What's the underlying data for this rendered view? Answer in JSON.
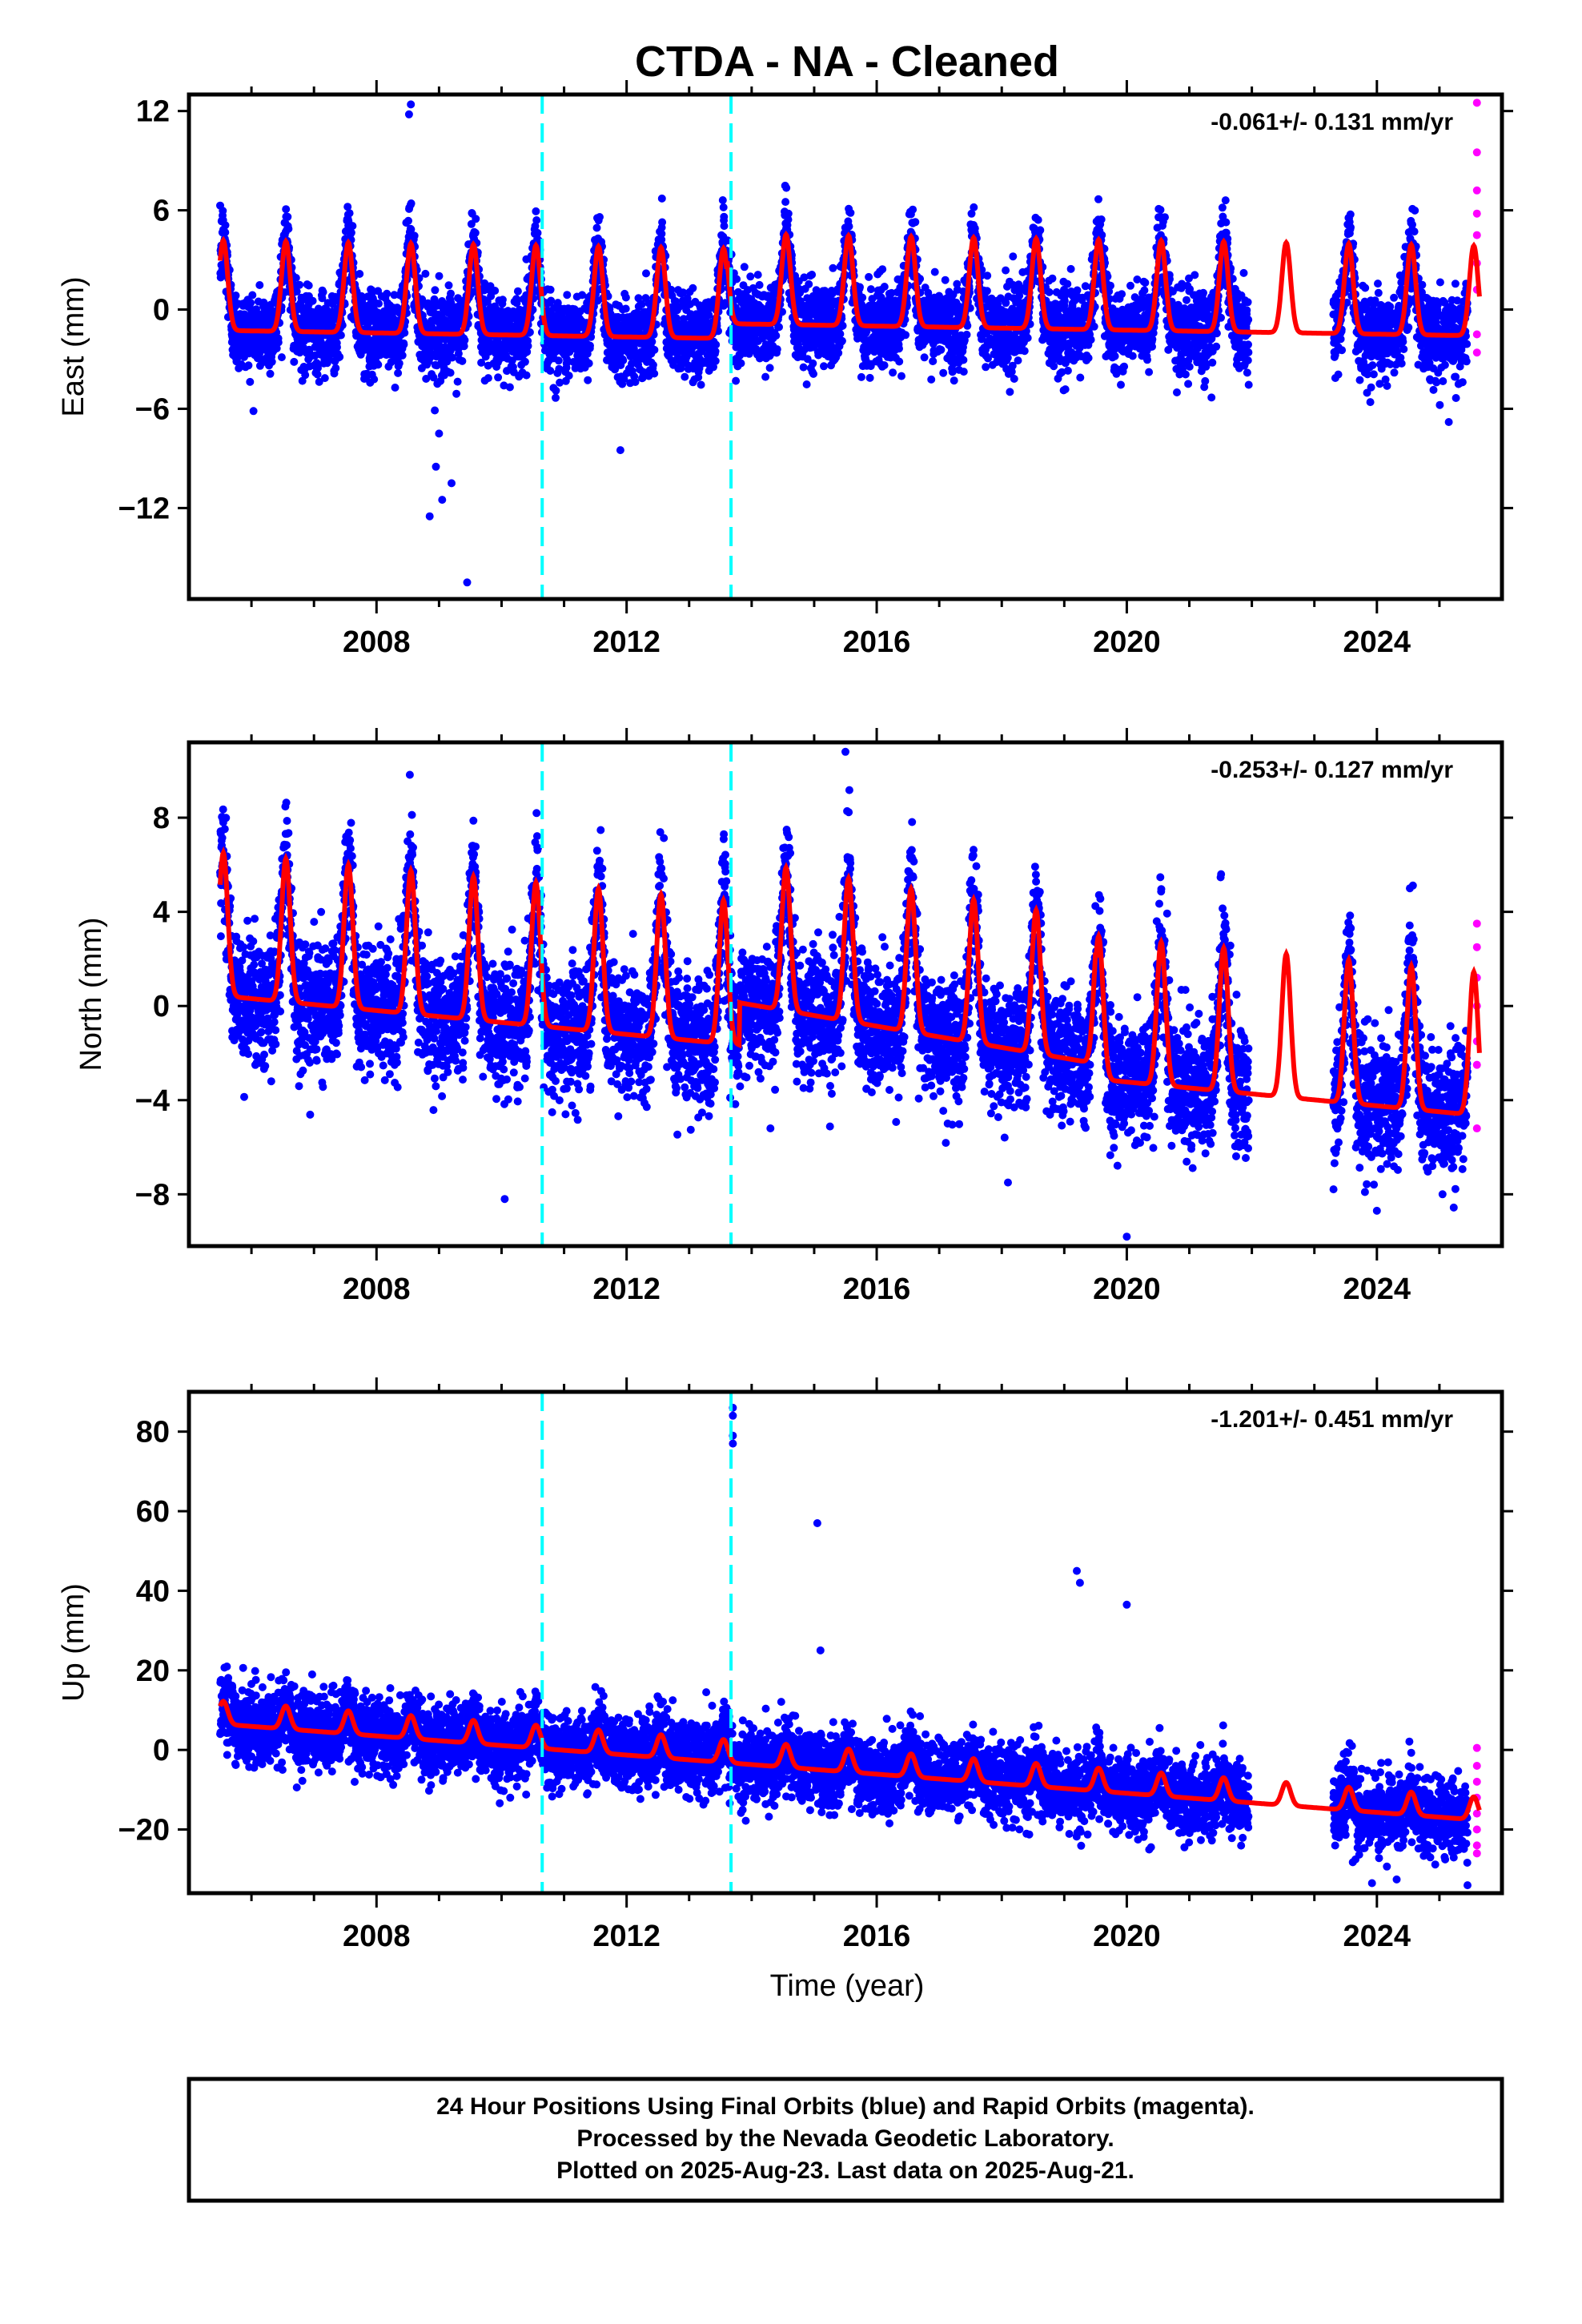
{
  "title": "CTDA  - NA - Cleaned",
  "colors": {
    "final": "#0000ff",
    "rapid": "#ff00ff",
    "model": "#ff0000",
    "offset": "#00ffff",
    "frame": "#000000"
  },
  "xaxis": {
    "label": "Time (year)",
    "min": 2005.0,
    "max": 2026.0,
    "ticks": [
      "2008",
      "2012",
      "2016",
      "2020",
      "2024"
    ]
  },
  "footer": {
    "line1": "24 Hour Positions Using Final Orbits (blue) and Rapid Orbits (magenta).",
    "line2": "Processed by the Nevada Geodetic Laboratory.",
    "line3": "Plotted on 2025-Aug-23. Last data on 2025-Aug-21."
  },
  "chart_data": [
    {
      "type": "scatter",
      "component": "east",
      "ylabel": "East (mm)",
      "rate": "-0.061+/- 0.131 mm/yr",
      "ylim": [
        -17.5,
        13.0
      ],
      "yticks": [
        "12",
        "6",
        "0",
        "-6",
        "-12"
      ],
      "x_start": 2005.5,
      "x_end_final": 2025.45,
      "x_end_rapid": 2025.64,
      "offsets": [
        2010.65,
        2013.67
      ],
      "gap": [
        2021.95,
        2023.3
      ],
      "annual_amplitude": 3.4,
      "trend": -0.061,
      "scatter": 1.2,
      "outliers": [
        [
          2008.55,
          12.4
        ],
        [
          2008.52,
          11.8
        ],
        [
          2009.45,
          -16.5
        ],
        [
          2008.85,
          -12.5
        ],
        [
          2009.2,
          -10.5
        ],
        [
          2009.05,
          -11.5
        ],
        [
          2008.95,
          -9.5
        ],
        [
          2009.0,
          -7.5
        ],
        [
          2011.9,
          -8.5
        ],
        [
          2025.15,
          -6.8
        ]
      ],
      "rapid_points": [
        [
          2025.6,
          12.5
        ],
        [
          2025.6,
          9.5
        ],
        [
          2025.6,
          7.2
        ],
        [
          2025.6,
          5.8
        ],
        [
          2025.6,
          4.5
        ],
        [
          2025.6,
          2.8
        ],
        [
          2025.6,
          1.2
        ],
        [
          2025.6,
          -1.5
        ],
        [
          2025.6,
          -2.6
        ]
      ]
    },
    {
      "type": "scatter",
      "component": "north",
      "ylabel": "North (mm)",
      "rate": "-0.253+/- 0.127 mm/yr",
      "ylim": [
        -10.2,
        11.2
      ],
      "yticks": [
        "8",
        "4",
        "0",
        "-4",
        "-8"
      ],
      "x_start": 2005.5,
      "x_end_final": 2025.45,
      "x_end_rapid": 2025.64,
      "offsets": [
        2010.65,
        2013.67
      ],
      "gap": [
        2021.95,
        2023.3
      ],
      "annual_amplitude": 3.8,
      "trend": -0.253,
      "scatter": 1.3,
      "outliers": [
        [
          2015.5,
          10.8
        ],
        [
          2010.05,
          -8.2
        ],
        [
          2020.0,
          -9.8
        ],
        [
          2018.1,
          -7.5
        ],
        [
          2014.3,
          -5.2
        ],
        [
          2024.0,
          -8.7
        ],
        [
          2025.05,
          -8.0
        ]
      ],
      "rapid_points": [
        [
          2025.6,
          3.5
        ],
        [
          2025.6,
          2.5
        ],
        [
          2025.6,
          1.2
        ],
        [
          2025.6,
          0.0
        ],
        [
          2025.6,
          -1.5
        ],
        [
          2025.6,
          -2.5
        ],
        [
          2025.6,
          -5.2
        ]
      ]
    },
    {
      "type": "scatter",
      "component": "up",
      "ylabel": "Up (mm)",
      "xlabel": "Time (year)",
      "rate": "-1.201+/- 0.451 mm/yr",
      "ylim": [
        -36,
        90
      ],
      "yticks": [
        "80",
        "60",
        "40",
        "20",
        "0",
        "-20"
      ],
      "x_start": 2005.5,
      "x_end_final": 2025.45,
      "x_end_rapid": 2025.64,
      "offsets": [
        2010.65,
        2013.67
      ],
      "gap": [
        2021.95,
        2023.3
      ],
      "annual_amplitude": 4.5,
      "trend": -1.201,
      "scatter": 4.5,
      "outliers": [
        [
          2013.7,
          86
        ],
        [
          2013.7,
          84
        ],
        [
          2013.7,
          79
        ],
        [
          2013.7,
          77
        ],
        [
          2015.05,
          57
        ],
        [
          2019.2,
          45
        ],
        [
          2019.25,
          42
        ],
        [
          2020.0,
          36.5
        ],
        [
          2015.1,
          25
        ],
        [
          2025.45,
          -34
        ]
      ],
      "rapid_points": [
        [
          2025.6,
          0.5
        ],
        [
          2025.6,
          -4
        ],
        [
          2025.6,
          -8
        ],
        [
          2025.6,
          -12
        ],
        [
          2025.6,
          -16
        ],
        [
          2025.6,
          -20
        ],
        [
          2025.6,
          -24
        ],
        [
          2025.6,
          -26
        ]
      ]
    }
  ]
}
